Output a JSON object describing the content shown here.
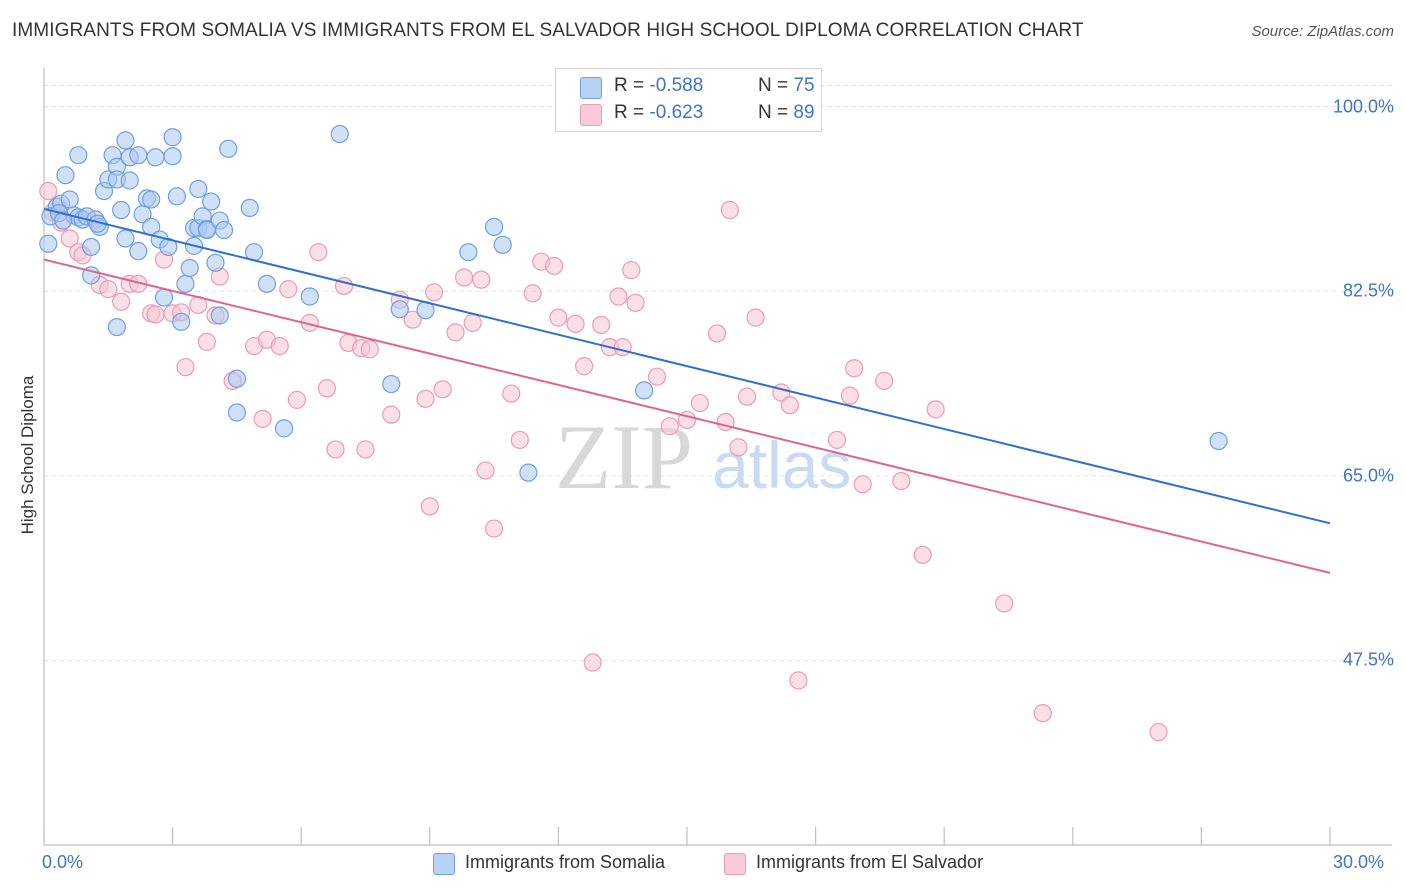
{
  "title": "IMMIGRANTS FROM SOMALIA VS IMMIGRANTS FROM EL SALVADOR HIGH SCHOOL DIPLOMA CORRELATION CHART",
  "source": "Source: ZipAtlas.com",
  "watermark": "ZIPatlas",
  "legend": {
    "rows": [
      {
        "r_label": "R =",
        "r_value": "-0.588",
        "n_label": "N =",
        "n_value": "75"
      },
      {
        "r_label": "R =",
        "r_value": "-0.623",
        "n_label": "N =",
        "n_value": "89"
      }
    ]
  },
  "colors": {
    "somalia_fill": "#a9c8f0",
    "somalia_stroke": "#6fa0e0",
    "somalia_line": "#2f6fcf",
    "elsalvador_fill": "#f7c4d4",
    "elsalvador_stroke": "#ec9bb5",
    "elsalvador_line": "#e0648f",
    "tick_text": "#3f74c6"
  },
  "chart_data": {
    "type": "scatter",
    "title": "IMMIGRANTS FROM SOMALIA VS IMMIGRANTS FROM EL SALVADOR HIGH SCHOOL DIPLOMA CORRELATION CHART",
    "xlabel": "",
    "ylabel": "High School Diploma",
    "xlim": [
      0,
      30
    ],
    "ylim": [
      30,
      103
    ],
    "x_tick_labels": [
      "0.0%",
      "30.0%"
    ],
    "y_ticks": [
      47.5,
      65.0,
      82.5,
      100.0
    ],
    "y_tick_labels": [
      "47.5%",
      "65.0%",
      "82.5%",
      "100.0%"
    ],
    "grid": true,
    "legend_position": "top-center",
    "series": [
      {
        "name": "Immigrants from Somalia",
        "trend": {
          "x": [
            0,
            30
          ],
          "y": [
            90.3,
            60.5
          ]
        },
        "points": [
          [
            0.1,
            87.0
          ],
          [
            0.3,
            90.5
          ],
          [
            0.4,
            90.8
          ],
          [
            0.5,
            93.5
          ],
          [
            0.6,
            91.2
          ],
          [
            0.7,
            89.7
          ],
          [
            0.8,
            95.4
          ],
          [
            0.8,
            89.5
          ],
          [
            0.9,
            89.3
          ],
          [
            1.0,
            89.6
          ],
          [
            1.1,
            84.0
          ],
          [
            1.1,
            86.7
          ],
          [
            1.2,
            89.3
          ],
          [
            1.3,
            88.6
          ],
          [
            1.4,
            92.0
          ],
          [
            1.5,
            93.1
          ],
          [
            1.6,
            95.4
          ],
          [
            1.7,
            94.3
          ],
          [
            1.7,
            93.1
          ],
          [
            1.7,
            79.1
          ],
          [
            1.8,
            90.2
          ],
          [
            1.9,
            96.8
          ],
          [
            1.9,
            87.5
          ],
          [
            2.0,
            95.2
          ],
          [
            2.0,
            93.0
          ],
          [
            2.2,
            95.4
          ],
          [
            2.2,
            86.3
          ],
          [
            2.3,
            89.8
          ],
          [
            2.4,
            91.3
          ],
          [
            2.5,
            88.6
          ],
          [
            2.5,
            91.2
          ],
          [
            2.6,
            95.2
          ],
          [
            2.7,
            87.4
          ],
          [
            2.8,
            81.9
          ],
          [
            2.9,
            86.7
          ],
          [
            3.0,
            97.1
          ],
          [
            3.0,
            95.3
          ],
          [
            3.1,
            91.5
          ],
          [
            3.2,
            79.6
          ],
          [
            3.3,
            83.2
          ],
          [
            3.4,
            84.7
          ],
          [
            3.5,
            86.8
          ],
          [
            3.5,
            88.5
          ],
          [
            3.6,
            88.5
          ],
          [
            3.6,
            92.2
          ],
          [
            3.7,
            89.6
          ],
          [
            3.8,
            88.4
          ],
          [
            3.8,
            88.3
          ],
          [
            3.9,
            91.0
          ],
          [
            4.0,
            85.2
          ],
          [
            4.1,
            80.2
          ],
          [
            4.1,
            89.2
          ],
          [
            4.2,
            88.3
          ],
          [
            4.3,
            96.0
          ],
          [
            4.5,
            74.2
          ],
          [
            4.5,
            71.0
          ],
          [
            4.8,
            90.4
          ],
          [
            4.9,
            86.2
          ],
          [
            5.2,
            83.2
          ],
          [
            5.6,
            69.5
          ],
          [
            6.2,
            82.0
          ],
          [
            6.9,
            97.4
          ],
          [
            8.1,
            73.7
          ],
          [
            8.3,
            80.8
          ],
          [
            8.9,
            80.7
          ],
          [
            9.9,
            86.2
          ],
          [
            10.5,
            88.6
          ],
          [
            10.7,
            86.9
          ],
          [
            11.3,
            65.3
          ],
          [
            14.0,
            73.1
          ],
          [
            27.4,
            68.3
          ],
          [
            0.15,
            89.6
          ],
          [
            0.35,
            89.9
          ],
          [
            0.45,
            89.2
          ],
          [
            1.25,
            88.9
          ]
        ]
      },
      {
        "name": "Immigrants from El Salvador",
        "trend": {
          "x": [
            0,
            30
          ],
          "y": [
            85.5,
            55.8
          ]
        },
        "points": [
          [
            0.1,
            92.0
          ],
          [
            0.2,
            90.0
          ],
          [
            0.4,
            89.0
          ],
          [
            0.6,
            87.5
          ],
          [
            0.8,
            86.2
          ],
          [
            0.9,
            85.9
          ],
          [
            1.3,
            83.1
          ],
          [
            1.5,
            82.7
          ],
          [
            1.8,
            81.5
          ],
          [
            2.0,
            83.2
          ],
          [
            2.2,
            83.2
          ],
          [
            2.5,
            80.4
          ],
          [
            2.6,
            80.3
          ],
          [
            2.8,
            85.5
          ],
          [
            3.0,
            80.4
          ],
          [
            3.2,
            80.5
          ],
          [
            3.3,
            75.3
          ],
          [
            3.6,
            81.2
          ],
          [
            3.8,
            77.7
          ],
          [
            4.0,
            80.2
          ],
          [
            4.1,
            83.9
          ],
          [
            4.4,
            74.0
          ],
          [
            4.9,
            77.3
          ],
          [
            5.1,
            70.4
          ],
          [
            5.2,
            77.9
          ],
          [
            5.5,
            77.3
          ],
          [
            5.7,
            82.7
          ],
          [
            5.9,
            72.2
          ],
          [
            6.2,
            79.5
          ],
          [
            6.4,
            86.2
          ],
          [
            6.6,
            73.3
          ],
          [
            6.8,
            67.5
          ],
          [
            7.0,
            83.0
          ],
          [
            7.1,
            77.6
          ],
          [
            7.4,
            77.1
          ],
          [
            7.5,
            67.5
          ],
          [
            7.6,
            77.0
          ],
          [
            8.1,
            70.8
          ],
          [
            8.3,
            81.7
          ],
          [
            8.6,
            79.8
          ],
          [
            8.9,
            72.3
          ],
          [
            9.0,
            62.1
          ],
          [
            9.1,
            82.4
          ],
          [
            9.3,
            73.2
          ],
          [
            9.6,
            78.6
          ],
          [
            9.8,
            83.8
          ],
          [
            10.0,
            79.5
          ],
          [
            10.2,
            83.6
          ],
          [
            10.3,
            65.5
          ],
          [
            10.5,
            60.0
          ],
          [
            10.9,
            72.8
          ],
          [
            11.1,
            68.4
          ],
          [
            11.4,
            82.3
          ],
          [
            11.6,
            85.3
          ],
          [
            11.9,
            84.9
          ],
          [
            12.0,
            80.0
          ],
          [
            12.4,
            79.4
          ],
          [
            12.6,
            75.4
          ],
          [
            12.8,
            47.3
          ],
          [
            13.0,
            79.3
          ],
          [
            13.2,
            77.2
          ],
          [
            13.4,
            82.0
          ],
          [
            13.5,
            77.2
          ],
          [
            13.7,
            84.5
          ],
          [
            13.8,
            81.4
          ],
          [
            14.3,
            74.4
          ],
          [
            14.6,
            69.7
          ],
          [
            15.0,
            70.3
          ],
          [
            15.3,
            71.9
          ],
          [
            15.7,
            78.5
          ],
          [
            15.9,
            70.1
          ],
          [
            16.0,
            90.2
          ],
          [
            16.2,
            67.7
          ],
          [
            16.4,
            72.5
          ],
          [
            16.6,
            80.0
          ],
          [
            17.2,
            72.9
          ],
          [
            17.4,
            71.7
          ],
          [
            17.6,
            45.6
          ],
          [
            18.5,
            68.4
          ],
          [
            18.8,
            72.6
          ],
          [
            18.9,
            75.2
          ],
          [
            19.1,
            64.2
          ],
          [
            19.6,
            74.0
          ],
          [
            20.0,
            64.5
          ],
          [
            20.5,
            57.5
          ],
          [
            20.8,
            71.3
          ],
          [
            22.4,
            52.9
          ],
          [
            23.3,
            42.5
          ],
          [
            26.0,
            40.7
          ]
        ]
      }
    ],
    "x_axis_min_label": "0.0%",
    "x_axis_max_label": "30.0%"
  },
  "bottom_legend": {
    "somalia": "Immigrants from Somalia",
    "elsalvador": "Immigrants from El Salvador"
  }
}
